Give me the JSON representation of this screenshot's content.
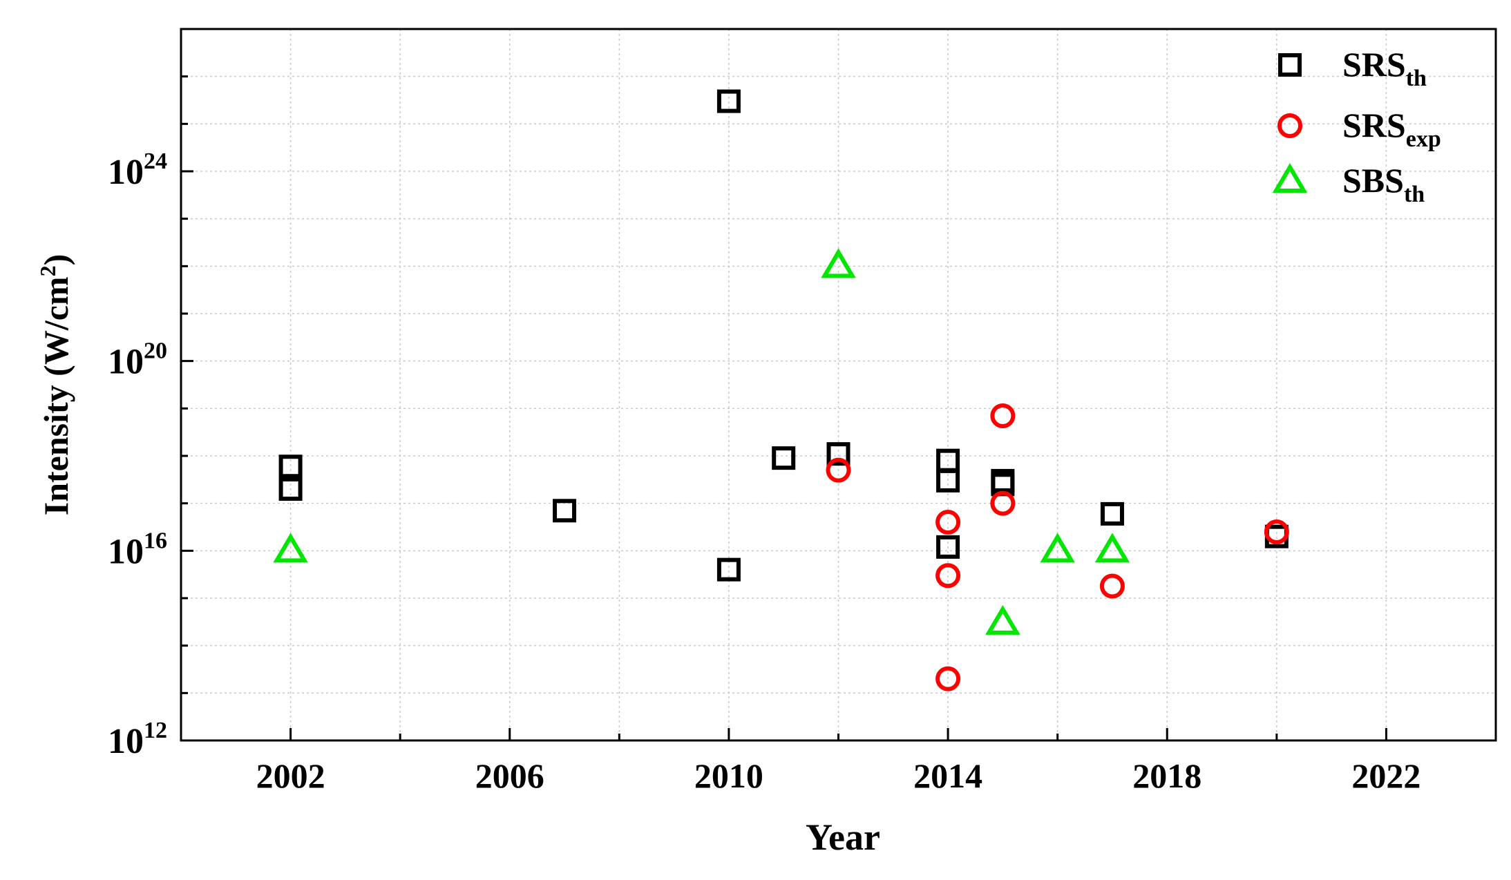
{
  "chart_data": {
    "type": "scatter",
    "xlabel": "Year",
    "ylabel": "Intensity (W/cm²)",
    "ylabel_parts": {
      "main": "Intensity (W/cm",
      "sup": "2",
      "end": ")"
    },
    "xlim": [
      2000,
      2024
    ],
    "ylim_log10": [
      12,
      27
    ],
    "y_scale": "log",
    "grid": true,
    "legend_position": "top-right",
    "x_ticks": [
      "2002",
      "2006",
      "2010",
      "2014",
      "2018",
      "2022"
    ],
    "y_ticks": [
      {
        "exponent": 12,
        "base": "10",
        "sup": "12"
      },
      {
        "exponent": 16,
        "base": "10",
        "sup": "16"
      },
      {
        "exponent": 20,
        "base": "10",
        "sup": "20"
      },
      {
        "exponent": 24,
        "base": "10",
        "sup": "24"
      }
    ],
    "series": [
      {
        "name": "SRS_th",
        "legend_main": "SRS",
        "legend_sub": "th",
        "marker": "square",
        "color": "#000000",
        "points": [
          {
            "x": 2002,
            "y": 6e+17
          },
          {
            "x": 2002,
            "y": 2e+17
          },
          {
            "x": 2007,
            "y": 7e+16
          },
          {
            "x": 2010,
            "y": 3e+25
          },
          {
            "x": 2010,
            "y": 4000000000000000.0
          },
          {
            "x": 2011,
            "y": 9e+17
          },
          {
            "x": 2012,
            "y": 1.1e+18
          },
          {
            "x": 2014,
            "y": 8e+17
          },
          {
            "x": 2014,
            "y": 3e+17
          },
          {
            "x": 2014,
            "y": 1.2e+16
          },
          {
            "x": 2015,
            "y": 3e+17
          },
          {
            "x": 2015,
            "y": 2.5e+17
          },
          {
            "x": 2017,
            "y": 6e+16
          },
          {
            "x": 2020,
            "y": 2e+16
          }
        ]
      },
      {
        "name": "SRS_exp",
        "legend_main": "SRS",
        "legend_sub": "exp",
        "marker": "circle",
        "color": "#ff0000",
        "points": [
          {
            "x": 2012,
            "y": 5e+17
          },
          {
            "x": 2014,
            "y": 4e+16
          },
          {
            "x": 2014,
            "y": 3000000000000000.0
          },
          {
            "x": 2014,
            "y": 20000000000000.0
          },
          {
            "x": 2015,
            "y": 7e+18
          },
          {
            "x": 2015,
            "y": 1e+17
          },
          {
            "x": 2017,
            "y": 1800000000000000.0
          },
          {
            "x": 2020,
            "y": 2.5e+16
          }
        ]
      },
      {
        "name": "SBS_th",
        "legend_main": "SBS",
        "legend_sub": "th",
        "marker": "triangle",
        "color": "#00e600",
        "points": [
          {
            "x": 2002,
            "y": 1e+16
          },
          {
            "x": 2012,
            "y": 1e+22
          },
          {
            "x": 2015,
            "y": 300000000000000.0
          },
          {
            "x": 2016,
            "y": 1e+16
          },
          {
            "x": 2017,
            "y": 1e+16
          }
        ]
      }
    ]
  }
}
